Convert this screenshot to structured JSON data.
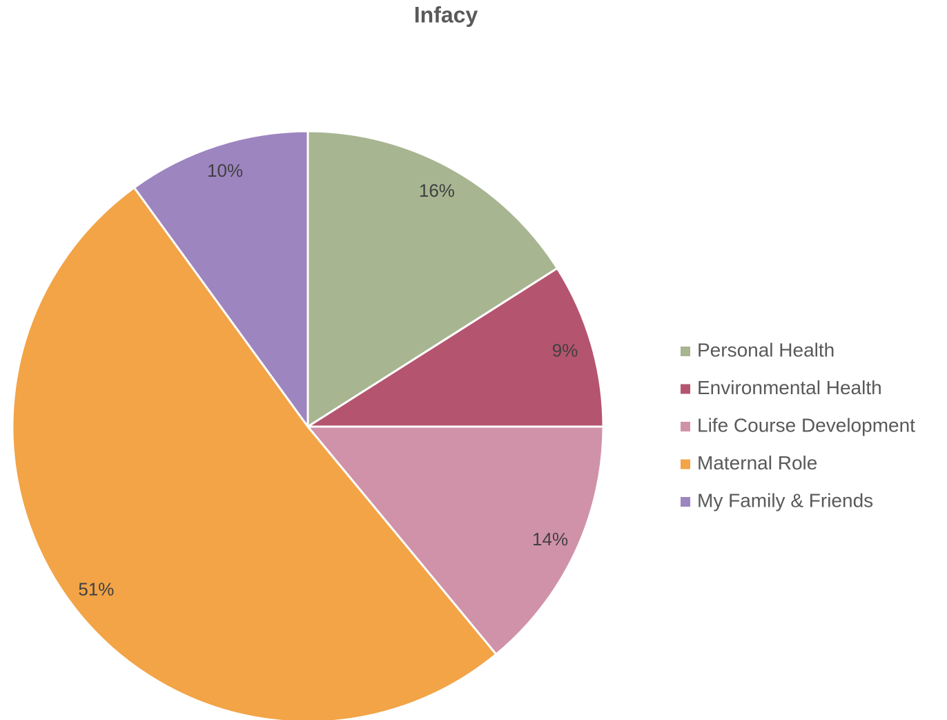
{
  "chart_data": {
    "type": "pie",
    "title": "Infacy",
    "categories": [
      "Personal Health",
      "Environmental Health",
      "Life Course Development",
      "Maternal Role",
      "My Family & Friends"
    ],
    "values": [
      16,
      9,
      14,
      51,
      10
    ],
    "value_labels": [
      "16%",
      "9%",
      "14%",
      "51%",
      "10%"
    ],
    "colors": [
      "#a7b591",
      "#b5546f",
      "#d092a8",
      "#f2a446",
      "#9d85c0"
    ],
    "legend": "right"
  }
}
